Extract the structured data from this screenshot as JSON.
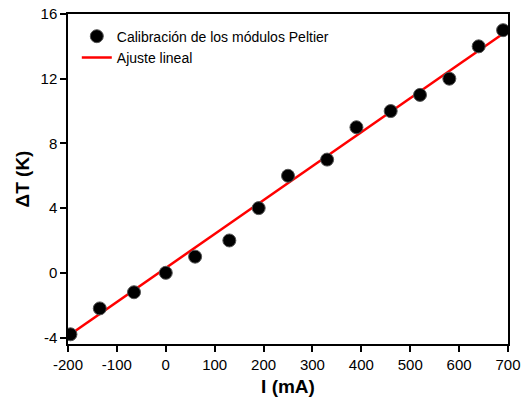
{
  "chart_data": {
    "type": "scatter",
    "xlabel": "I (mA)",
    "ylabel": "ΔT (K)",
    "xlim": [
      -200,
      700
    ],
    "ylim": [
      -4.4,
      16
    ],
    "xticks": [
      -200,
      -100,
      0,
      100,
      200,
      300,
      400,
      500,
      600,
      700
    ],
    "yticks": [
      -4,
      0,
      4,
      8,
      12,
      16
    ],
    "grid": false,
    "legend": "upper left",
    "series": [
      {
        "name": "Calibración de los módulos Peltier",
        "type": "scatter",
        "marker": "circle",
        "color": "#000000",
        "x": [
          -195,
          -135,
          -65,
          0,
          60,
          130,
          190,
          250,
          330,
          390,
          460,
          520,
          580,
          640,
          690
        ],
        "values": [
          -3.8,
          -2.2,
          -1.2,
          0,
          1,
          2,
          4,
          6,
          7,
          9,
          10,
          11,
          12,
          14,
          15
        ]
      },
      {
        "name": "Ajuste lineal",
        "type": "line",
        "line_style": "solid",
        "color": "#ff0000",
        "x": [
          -200,
          700
        ],
        "values": [
          -3.9,
          15.0
        ]
      }
    ]
  }
}
